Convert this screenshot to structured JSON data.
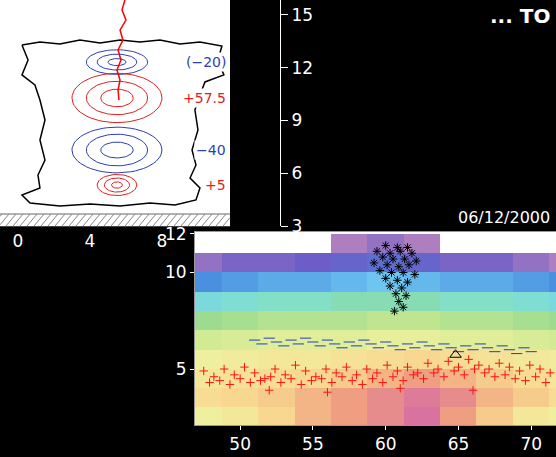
{
  "chart_data": [
    {
      "type": "contour_diagram",
      "xlim": [
        -1,
        11.78
      ],
      "xticks": [
        0,
        4,
        8
      ],
      "ylim": [
        3,
        15.85
      ],
      "yticks": [
        3,
        6,
        9,
        12,
        15
      ],
      "grid": false,
      "outline": {
        "color": "black",
        "x": [
          0.22,
          1.22,
          2.33,
          3.44,
          4.56,
          5.67,
          6.78,
          7.89,
          9.0,
          10.11,
          11.33,
          11.11,
          11.44,
          10.39,
          10.11,
          9.83,
          10.0,
          9.67,
          9.89,
          9.56,
          10.11,
          9.89,
          8.72,
          7.33,
          5.67,
          4.0,
          2.33,
          0.67,
          0.22,
          1.22,
          1.11,
          1.5,
          1.22,
          1.5,
          1.22,
          0.94,
          0.22,
          0.56,
          0.22
        ],
        "y": [
          13.29,
          13.46,
          13.35,
          13.58,
          13.41,
          13.58,
          13.46,
          13.58,
          13.35,
          13.46,
          13.23,
          12.44,
          11.59,
          11.19,
          10.45,
          9.6,
          8.46,
          7.32,
          6.47,
          5.73,
          5.16,
          4.48,
          4.19,
          4.31,
          4.14,
          4.25,
          4.14,
          4.31,
          4.76,
          5.16,
          5.9,
          6.75,
          7.89,
          9.03,
          10.16,
          11.02,
          11.59,
          12.44,
          13.29
        ]
      },
      "channel": {
        "color": "red",
        "x": [
          5.94,
          5.78,
          6.0,
          5.67,
          5.83,
          5.56,
          5.72,
          5.5,
          5.67,
          5.56,
          5.61
        ],
        "y": [
          15.85,
          15.28,
          14.71,
          14.14,
          13.58,
          13.01,
          12.44,
          11.87,
          11.3,
          10.73,
          10.16
        ]
      },
      "regions": [
        {
          "label": "(−20)",
          "color": "#2a3fb0",
          "x": 5.5,
          "y": 12.32,
          "rx": [
            1.7,
            1.1,
            0.5
          ],
          "ry": [
            0.7,
            0.45,
            0.2
          ]
        },
        {
          "label": "+57.5",
          "color": "#e02020",
          "x": 5.5,
          "y": 10.28,
          "rx": [
            2.5,
            1.7,
            0.9
          ],
          "ry": [
            1.4,
            0.95,
            0.5
          ]
        },
        {
          "label": "−40",
          "color": "#2a3fb0",
          "x": 5.5,
          "y": 7.32,
          "rx": [
            2.5,
            1.7,
            0.9
          ],
          "ry": [
            1.3,
            0.9,
            0.45
          ]
        },
        {
          "label": "+5",
          "color": "#e02020",
          "x": 5.5,
          "y": 5.33,
          "rx": [
            1.1,
            0.7,
            0.3
          ],
          "ry": [
            0.6,
            0.4,
            0.18
          ]
        }
      ]
    },
    {
      "type": "scatter",
      "title": "... TO",
      "annotations": [
        "06/12/2000"
      ],
      "xlim": [
        46.9,
        71.7
      ],
      "xticks": [
        50,
        55,
        60,
        65,
        70
      ],
      "ylim": [
        2.1,
        12.1
      ],
      "yticks": [
        5,
        10,
        12
      ],
      "grid": false,
      "zlim": [
        0,
        60
      ],
      "heatmap": {
        "x": [
          47.5,
          50,
          52.5,
          55,
          57.5,
          60,
          62.5,
          65,
          67.5,
          70,
          72.5
        ],
        "y": [
          2.5,
          3.5,
          4.5,
          5.5,
          6.5,
          7.5,
          8.5,
          9.5,
          10.5,
          11.5,
          12.5
        ],
        "z": [
          [
            40,
            42,
            45,
            48,
            50,
            52,
            55,
            50,
            46,
            42,
            40
          ],
          [
            44,
            45,
            46,
            48,
            50,
            52,
            54,
            52,
            48,
            46,
            44
          ],
          [
            42,
            43,
            44,
            45,
            46,
            48,
            50,
            48,
            46,
            44,
            42
          ],
          [
            40,
            41,
            42,
            42,
            43,
            44,
            45,
            44,
            43,
            42,
            41
          ],
          [
            36,
            37,
            38,
            38,
            38,
            39,
            39,
            38,
            38,
            37,
            36
          ],
          [
            31,
            32,
            33,
            33,
            33,
            34,
            34,
            33,
            33,
            32,
            31
          ],
          [
            25,
            26,
            27,
            27,
            28,
            28,
            28,
            27,
            27,
            26,
            25
          ],
          [
            18,
            19,
            20,
            20,
            21,
            22,
            21,
            20,
            20,
            19,
            18
          ],
          [
            10,
            12,
            12,
            13,
            14,
            15,
            14,
            12,
            12,
            10,
            8
          ],
          [
            null,
            null,
            null,
            null,
            8,
            10,
            8,
            null,
            null,
            null,
            null
          ],
          [
            null,
            null,
            null,
            null,
            null,
            null,
            null,
            null,
            null,
            null,
            null
          ]
        ]
      },
      "series": [
        {
          "marker": "asterisk",
          "color": "black",
          "x": [
            60.0,
            60.8,
            61.5,
            59.4,
            60.3,
            61.0,
            61.8,
            59.8,
            60.5,
            61.3,
            62.1,
            59.2,
            60.1,
            60.9,
            61.6,
            59.6,
            60.4,
            61.2,
            62.0,
            60.0,
            60.8,
            61.5,
            60.3,
            61.1,
            60.7,
            61.4,
            60.9,
            61.2,
            60.6
          ],
          "y": [
            11.4,
            11.3,
            11.3,
            11.1,
            11.0,
            11.1,
            11.0,
            10.8,
            10.7,
            10.7,
            10.6,
            10.5,
            10.4,
            10.3,
            10.4,
            10.1,
            10.0,
            10.0,
            9.9,
            9.7,
            9.6,
            9.5,
            9.3,
            9.2,
            8.9,
            8.8,
            8.5,
            8.2,
            8.0
          ]
        },
        {
          "marker": "dash",
          "color": "#2040c0",
          "x": [
            51,
            51.5,
            52,
            52.5,
            53,
            53.5,
            54,
            54.5,
            55,
            55.5,
            56,
            56.5,
            57,
            57.5,
            58,
            58.5,
            59,
            59.5,
            60,
            60.5,
            61,
            61.5,
            62,
            62.5,
            63,
            63.5,
            64,
            64.5,
            65,
            65.5,
            66,
            66.5,
            67,
            67.5,
            68,
            68.5,
            69,
            69.5,
            70
          ],
          "y": [
            6.5,
            6.3,
            6.6,
            6.4,
            6.2,
            6.5,
            6.3,
            6.6,
            6.4,
            6.2,
            6.5,
            6.3,
            6.1,
            6.4,
            6.2,
            6.5,
            6.3,
            6.1,
            6.4,
            6.2,
            6.0,
            6.3,
            6.1,
            6.4,
            6.2,
            6.0,
            6.3,
            6.1,
            5.9,
            6.2,
            6.0,
            6.3,
            6.1,
            5.9,
            6.2,
            6.0,
            5.8,
            6.1,
            5.9
          ]
        },
        {
          "marker": "plus",
          "color": "#ff1010",
          "x": [
            47.5,
            48.2,
            48.9,
            49.6,
            50.3,
            51.0,
            51.7,
            52.4,
            53.1,
            53.8,
            54.5,
            55.2,
            55.9,
            56.6,
            57.3,
            58.0,
            58.7,
            59.4,
            60.1,
            60.8,
            61.5,
            62.2,
            62.9,
            63.6,
            64.3,
            65.0,
            65.7,
            66.4,
            67.1,
            67.8,
            68.5,
            69.2,
            69.9,
            70.6,
            71.3,
            47.9,
            48.6,
            49.3,
            50.0,
            50.7,
            51.4,
            52.1,
            52.8,
            53.5,
            54.2,
            54.9,
            55.6,
            56.3,
            57.0,
            57.7,
            58.4,
            59.1,
            59.8,
            60.5,
            61.2,
            61.9,
            62.6,
            63.3,
            64.0,
            64.7,
            65.4,
            66.1,
            66.8,
            67.5,
            68.2,
            68.9,
            69.6,
            70.3,
            71.0,
            52,
            56,
            61,
            66
          ],
          "y": [
            4.9,
            4.6,
            5.0,
            4.7,
            5.1,
            4.8,
            4.5,
            5.0,
            4.7,
            5.2,
            4.9,
            4.6,
            5.0,
            4.8,
            5.1,
            4.7,
            5.0,
            4.8,
            5.2,
            4.9,
            5.1,
            4.8,
            5.3,
            5.0,
            5.4,
            5.1,
            5.5,
            5.2,
            5.0,
            5.3,
            5.1,
            4.9,
            5.2,
            5.0,
            4.8,
            4.3,
            4.4,
            4.2,
            4.5,
            4.3,
            4.4,
            4.6,
            4.3,
            4.5,
            4.2,
            4.4,
            4.5,
            4.3,
            4.6,
            4.4,
            4.2,
            4.5,
            4.3,
            4.6,
            4.4,
            4.7,
            4.5,
            4.8,
            4.6,
            4.9,
            4.7,
            5.0,
            4.8,
            4.6,
            4.7,
            4.5,
            4.4,
            4.6,
            4.3,
            3.9,
            3.8,
            4.0,
            3.9
          ]
        },
        {
          "marker": "triangle",
          "color": "black",
          "x": [
            64.8
          ],
          "y": [
            5.74
          ]
        }
      ]
    }
  ]
}
